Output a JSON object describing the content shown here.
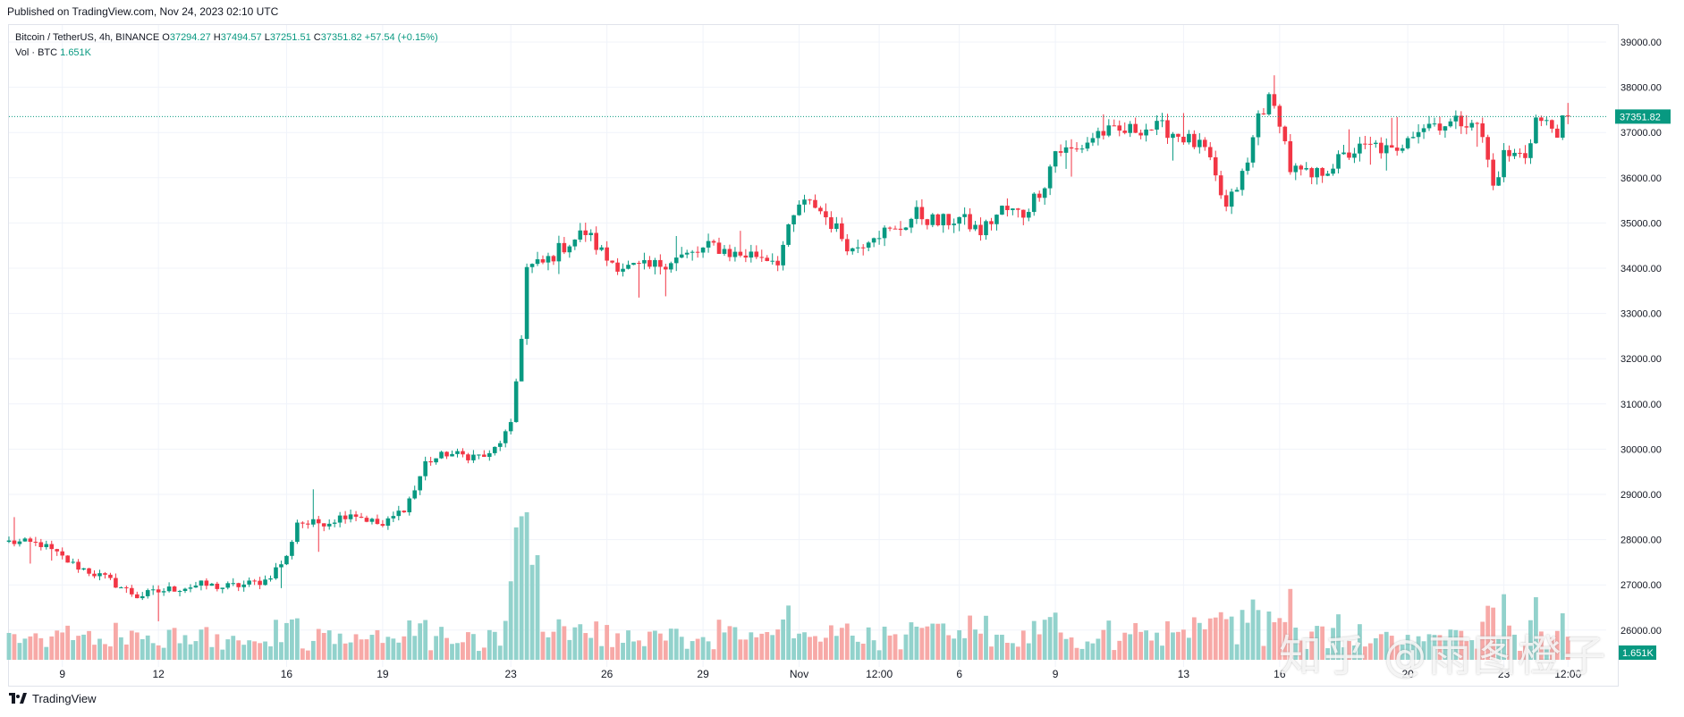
{
  "header": {
    "published": "Published on TradingView.com, Nov 24, 2023 02:10 UTC"
  },
  "legend": {
    "symbol": "Bitcoin / TetherUS, 4h, BINANCE",
    "o_label": "O",
    "o_value": "37294.27",
    "h_label": "H",
    "h_value": "37494.57",
    "l_label": "L",
    "l_value": "37251.51",
    "c_label": "C",
    "c_value": "37351.82",
    "change": "+57.54 (+0.15%)",
    "volume_label": "Vol · BTC",
    "volume_value": "1.651K"
  },
  "footer": {
    "brand": "TradingView"
  },
  "watermark": "知乎 @雨图橙子",
  "colors": {
    "up": "#089981",
    "down": "#f23645",
    "vol_up": "#92d2cc",
    "vol_down": "#f7a9a7",
    "grid": "#f0f3fa"
  },
  "chart_data": {
    "type": "candlestick",
    "symbol": "BTCUSDT",
    "interval": "4h",
    "y_axis": {
      "range": [
        26000,
        39300
      ],
      "ticks": [
        26000,
        27000,
        28000,
        29000,
        30000,
        31000,
        32000,
        33000,
        34000,
        35000,
        36000,
        37000,
        38000,
        39000
      ],
      "tick_labels": [
        "26000.00",
        "27000.00",
        "28000.00",
        "29000.00",
        "30000.00",
        "31000.00",
        "32000.00",
        "33000.00",
        "34000.00",
        "35000.00",
        "36000.00",
        "37000.00",
        "38000.00",
        "39000.00"
      ]
    },
    "x_axis": {
      "tick_labels": [
        "9",
        "12",
        "16",
        "19",
        "23",
        "26",
        "29",
        "Nov",
        "12:00",
        "6",
        "9",
        "13",
        "16",
        "20",
        "23",
        "12:00"
      ],
      "tick_index": [
        10,
        28,
        52,
        70,
        94,
        112,
        130,
        148,
        163,
        178,
        196,
        220,
        238,
        262,
        280,
        292
      ]
    },
    "last_price": 37351.82,
    "last_price_label": "37351.82",
    "last_volume_label": "1.651K",
    "anchors": [
      [
        0,
        27950
      ],
      [
        6,
        27900
      ],
      [
        12,
        27450
      ],
      [
        18,
        27150
      ],
      [
        24,
        26750
      ],
      [
        30,
        26900
      ],
      [
        36,
        27000
      ],
      [
        40,
        26950
      ],
      [
        44,
        27000
      ],
      [
        48,
        27100
      ],
      [
        52,
        27600
      ],
      [
        54,
        28400
      ],
      [
        56,
        28350
      ],
      [
        60,
        28400
      ],
      [
        64,
        28600
      ],
      [
        70,
        28300
      ],
      [
        74,
        28700
      ],
      [
        76,
        29100
      ],
      [
        78,
        29700
      ],
      [
        82,
        29900
      ],
      [
        86,
        29850
      ],
      [
        90,
        29850
      ],
      [
        94,
        30500
      ],
      [
        96,
        32500
      ],
      [
        97,
        34000
      ],
      [
        100,
        34100
      ],
      [
        104,
        34500
      ],
      [
        108,
        34800
      ],
      [
        112,
        34200
      ],
      [
        116,
        34000
      ],
      [
        120,
        34000
      ],
      [
        124,
        34200
      ],
      [
        128,
        34300
      ],
      [
        132,
        34500
      ],
      [
        136,
        34300
      ],
      [
        140,
        34300
      ],
      [
        144,
        34200
      ],
      [
        148,
        35400
      ],
      [
        151,
        35400
      ],
      [
        154,
        35000
      ],
      [
        158,
        34400
      ],
      [
        162,
        34800
      ],
      [
        166,
        34800
      ],
      [
        170,
        35200
      ],
      [
        174,
        35000
      ],
      [
        178,
        35100
      ],
      [
        182,
        34800
      ],
      [
        186,
        35300
      ],
      [
        190,
        35200
      ],
      [
        194,
        35900
      ],
      [
        196,
        36600
      ],
      [
        200,
        36600
      ],
      [
        204,
        37000
      ],
      [
        208,
        37000
      ],
      [
        212,
        37100
      ],
      [
        216,
        37100
      ],
      [
        220,
        36900
      ],
      [
        224,
        36600
      ],
      [
        228,
        35300
      ],
      [
        232,
        36300
      ],
      [
        234,
        37400
      ],
      [
        236,
        37700
      ],
      [
        238,
        37300
      ],
      [
        240,
        36200
      ],
      [
        244,
        36000
      ],
      [
        248,
        36300
      ],
      [
        252,
        36600
      ],
      [
        256,
        36700
      ],
      [
        260,
        36500
      ],
      [
        262,
        37000
      ],
      [
        266,
        37200
      ],
      [
        270,
        37200
      ],
      [
        274,
        37300
      ],
      [
        276,
        36900
      ],
      [
        278,
        35800
      ],
      [
        280,
        36500
      ],
      [
        284,
        36500
      ],
      [
        286,
        37300
      ],
      [
        290,
        37050
      ],
      [
        292,
        37350
      ]
    ],
    "volume_range": [
      0,
      48000
    ]
  }
}
